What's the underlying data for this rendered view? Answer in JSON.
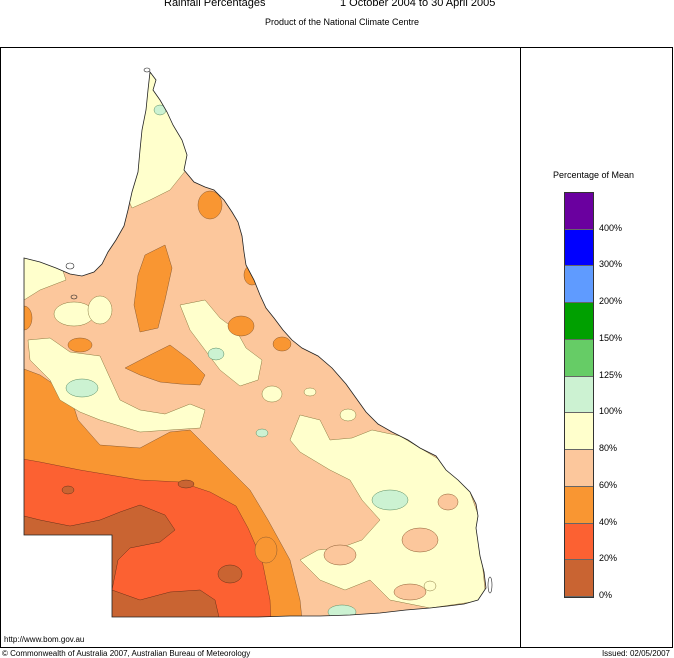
{
  "header": {
    "title": "Rainfall Percentages",
    "period": "1 October 2004 to 30 April 2005",
    "subtitle": "Product of the National Climate Centre"
  },
  "legend": {
    "title": "Percentage of Mean",
    "classes": [
      {
        "label": "400%",
        "color": "#6a009f"
      },
      {
        "label": "300%",
        "color": "#0000ff"
      },
      {
        "label": "200%",
        "color": "#5f9bff"
      },
      {
        "label": "150%",
        "color": "#00a000"
      },
      {
        "label": "125%",
        "color": "#66cc66"
      },
      {
        "label": "100%",
        "color": "#ccf2d2"
      },
      {
        "label": "80%",
        "color": "#ffffcc"
      },
      {
        "label": "60%",
        "color": "#fcc79c"
      },
      {
        "label": "40%",
        "color": "#f99632"
      },
      {
        "label": "20%",
        "color": "#fc6132"
      },
      {
        "label": "0%",
        "color": "#c96432"
      }
    ]
  },
  "footer": {
    "url": "http://www.bom.gov.au",
    "copyright": "© Commonwealth of Australia 2007, Australian Bureau of Meteorology",
    "issued": "Issued: 02/05/2007"
  }
}
